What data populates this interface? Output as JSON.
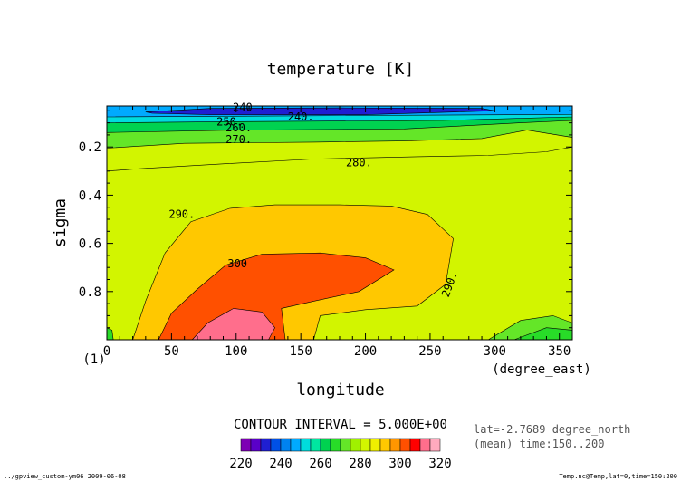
{
  "chart_data": {
    "type": "heatmap",
    "title": "temperature [K]",
    "xlabel": "longitude",
    "xunits": "(degree_east)",
    "ylabel": "sigma",
    "frame_number": "(1)",
    "x_ticks": [
      "0",
      "50",
      "100",
      "150",
      "200",
      "250",
      "300",
      "350"
    ],
    "y_ticks": [
      "0.2",
      "0.4",
      "0.6",
      "0.8"
    ],
    "xlim": [
      0,
      360
    ],
    "ylim": [
      1.0,
      0.03
    ],
    "contour_interval_text": "CONTOUR INTERVAL = 5.000E+00",
    "info_lines": [
      "lat=-2.7689 degree_north",
      "(mean) time:150..200"
    ],
    "footer_left": "../gpview_custom-ym06  2009-06-08",
    "footer_right": "Temp.nc@Temp,lat=0,time=150:200",
    "colorbar": {
      "labels": [
        "220",
        "240",
        "260",
        "280",
        "300",
        "320"
      ],
      "levels": [
        220,
        225,
        230,
        235,
        240,
        245,
        250,
        255,
        260,
        265,
        270,
        275,
        280,
        285,
        290,
        295,
        300,
        305,
        310,
        315,
        320
      ],
      "colors": [
        "#7d00b4",
        "#5a00c8",
        "#1f1fd2",
        "#0050e6",
        "#0082f0",
        "#00aaff",
        "#00dcdc",
        "#00e6a0",
        "#00d250",
        "#28dc28",
        "#64e628",
        "#a0f000",
        "#d2f500",
        "#f0f000",
        "#ffc800",
        "#ff9600",
        "#ff5000",
        "#ff0000",
        "#ff6e8c",
        "#ffaabe"
      ]
    },
    "contour_labels": [
      {
        "text": "240",
        "x": 105,
        "y": 0.035
      },
      {
        "text": "240.",
        "x": 150,
        "y": 0.075
      },
      {
        "text": "250.",
        "x": 95,
        "y": 0.095
      },
      {
        "text": "260.",
        "x": 102,
        "y": 0.12
      },
      {
        "text": "270.",
        "x": 102,
        "y": 0.17
      },
      {
        "text": "280.",
        "x": 195,
        "y": 0.265
      },
      {
        "text": "290.",
        "x": 58,
        "y": 0.48
      },
      {
        "text": "300",
        "x": 101,
        "y": 0.685
      },
      {
        "text": "290.",
        "x": 265,
        "y": 0.77
      }
    ],
    "regions": [
      {
        "value": 280,
        "points": [
          [
            0,
            0.3
          ],
          [
            25,
            0.29
          ],
          [
            90,
            0.27
          ],
          [
            160,
            0.25
          ],
          [
            240,
            0.24
          ],
          [
            295,
            0.235
          ],
          [
            340,
            0.22
          ],
          [
            360,
            0.2
          ],
          [
            360,
            1.0
          ],
          [
            0,
            1.0
          ]
        ]
      },
      {
        "value": 290,
        "points": [
          [
            20,
            1.0
          ],
          [
            30,
            0.84
          ],
          [
            45,
            0.64
          ],
          [
            65,
            0.51
          ],
          [
            95,
            0.455
          ],
          [
            130,
            0.44
          ],
          [
            180,
            0.44
          ],
          [
            220,
            0.445
          ],
          [
            248,
            0.48
          ],
          [
            268,
            0.58
          ],
          [
            262,
            0.77
          ],
          [
            240,
            0.86
          ],
          [
            200,
            0.875
          ],
          [
            165,
            0.9
          ],
          [
            160,
            1.0
          ]
        ]
      },
      {
        "value": 300,
        "points": [
          [
            40,
            1.0
          ],
          [
            50,
            0.89
          ],
          [
            70,
            0.79
          ],
          [
            92,
            0.69
          ],
          [
            120,
            0.645
          ],
          [
            165,
            0.64
          ],
          [
            200,
            0.66
          ],
          [
            222,
            0.71
          ],
          [
            195,
            0.8
          ],
          [
            160,
            0.84
          ],
          [
            135,
            0.87
          ],
          [
            138,
            1.0
          ]
        ]
      },
      {
        "value": 310,
        "points": [
          [
            66,
            1.0
          ],
          [
            78,
            0.93
          ],
          [
            98,
            0.87
          ],
          [
            120,
            0.885
          ],
          [
            130,
            0.95
          ],
          [
            125,
            1.0
          ]
        ]
      },
      {
        "value": 270,
        "points": [
          [
            0,
            0.205
          ],
          [
            60,
            0.185
          ],
          [
            160,
            0.18
          ],
          [
            230,
            0.175
          ],
          [
            290,
            0.165
          ],
          [
            325,
            0.13
          ],
          [
            360,
            0.16
          ],
          [
            360,
            0.03
          ],
          [
            0,
            0.03
          ]
        ]
      },
      {
        "value": 260,
        "points": [
          [
            0,
            0.14
          ],
          [
            100,
            0.13
          ],
          [
            230,
            0.125
          ],
          [
            320,
            0.1
          ],
          [
            360,
            0.09
          ],
          [
            360,
            0.03
          ],
          [
            0,
            0.03
          ]
        ]
      },
      {
        "value": 250,
        "points": [
          [
            0,
            0.1
          ],
          [
            100,
            0.095
          ],
          [
            260,
            0.09
          ],
          [
            360,
            0.075
          ],
          [
            360,
            0.03
          ],
          [
            0,
            0.03
          ]
        ]
      },
      {
        "value": 245,
        "points": [
          [
            0,
            0.075
          ],
          [
            360,
            0.065
          ],
          [
            360,
            0.03
          ],
          [
            0,
            0.03
          ]
        ]
      },
      {
        "value": 230,
        "points": [
          [
            30,
            0.055
          ],
          [
            80,
            0.04
          ],
          [
            180,
            0.038
          ],
          [
            290,
            0.04
          ],
          [
            300,
            0.05
          ],
          [
            200,
            0.066
          ],
          [
            80,
            0.066
          ],
          [
            35,
            0.06
          ]
        ]
      },
      {
        "value": 265,
        "points": [
          [
            0,
            0.95
          ],
          [
            4,
            0.96
          ],
          [
            5,
            1.0
          ],
          [
            0,
            1.0
          ]
        ]
      },
      {
        "value": 270,
        "points": [
          [
            295,
            1.0
          ],
          [
            320,
            0.92
          ],
          [
            345,
            0.9
          ],
          [
            360,
            0.93
          ],
          [
            360,
            1.0
          ]
        ]
      },
      {
        "value": 265,
        "points": [
          [
            315,
            1.0
          ],
          [
            340,
            0.95
          ],
          [
            360,
            0.96
          ],
          [
            360,
            1.0
          ]
        ]
      }
    ]
  }
}
